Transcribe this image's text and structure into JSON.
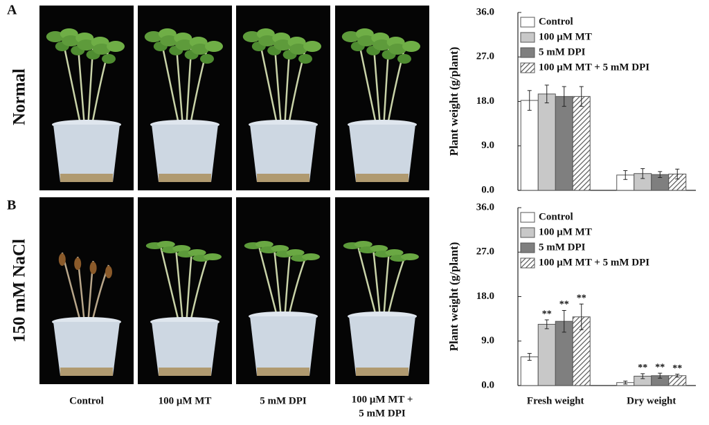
{
  "figure": {
    "panels": [
      "A",
      "B"
    ],
    "rows": [
      "Normal",
      "150 mM NaCl"
    ],
    "columns": [
      [
        "Control"
      ],
      [
        "100 μM MT"
      ],
      [
        "5 mM DPI"
      ],
      [
        "100 μM MT +",
        "5 mM DPI"
      ]
    ]
  },
  "chart_data": [
    {
      "type": "bar",
      "ylabel": "Plant weight (g/plant)",
      "categories": [
        null,
        null
      ],
      "ylim": [
        0,
        36
      ],
      "yticks": [
        {
          "value": 0,
          "label": "0.0"
        },
        {
          "value": 9,
          "label": "9.0"
        },
        {
          "value": 18,
          "label": "18.0"
        },
        {
          "value": 27,
          "label": "27.0"
        },
        {
          "value": 36,
          "label": "36.0"
        }
      ],
      "legend": "upper left",
      "series": [
        {
          "name": "Control",
          "color": "#ffffff",
          "values": [
            18.2,
            3.1
          ],
          "errors": [
            2.0,
            0.9
          ]
        },
        {
          "name": "100 μM MT",
          "color": "#c8c8c8",
          "values": [
            19.5,
            3.4
          ],
          "errors": [
            1.8,
            1.0
          ]
        },
        {
          "name": "5 mM DPI",
          "color": "#7f7f7f",
          "values": [
            19.0,
            3.2
          ],
          "errors": [
            2.0,
            0.6
          ]
        },
        {
          "name": "100 μM MT + 5 mM DPI",
          "color": "#7f7f7f",
          "hatch": true,
          "values": [
            19.0,
            3.3
          ],
          "errors": [
            2.0,
            1.0
          ]
        }
      ]
    },
    {
      "type": "bar",
      "ylabel": "Plant weight (g/plant)",
      "categories": [
        "Fresh weight",
        "Dry weight"
      ],
      "ylim": [
        0,
        36
      ],
      "yticks": [
        {
          "value": 0,
          "label": "0.0"
        },
        {
          "value": 9,
          "label": "9.0"
        },
        {
          "value": 18,
          "label": "18.0"
        },
        {
          "value": 27,
          "label": "27.0"
        },
        {
          "value": 36,
          "label": "36.0"
        }
      ],
      "legend": "upper left",
      "series": [
        {
          "name": "Control",
          "color": "#ffffff",
          "values": [
            5.8,
            0.6
          ],
          "errors": [
            0.7,
            0.3
          ]
        },
        {
          "name": "100 μM MT",
          "color": "#c8c8c8",
          "values": [
            12.4,
            1.9
          ],
          "errors": [
            0.9,
            0.5
          ],
          "significance": [
            "**",
            "**"
          ]
        },
        {
          "name": "5 mM DPI",
          "color": "#7f7f7f",
          "values": [
            13.0,
            2.0
          ],
          "errors": [
            2.2,
            0.5
          ],
          "significance": [
            "**",
            "**"
          ]
        },
        {
          "name": "100 μM MT + 5 mM DPI",
          "color": "#7f7f7f",
          "hatch": true,
          "values": [
            13.9,
            2.0
          ],
          "errors": [
            2.6,
            0.3
          ],
          "significance": [
            "**",
            "**"
          ]
        }
      ]
    }
  ]
}
